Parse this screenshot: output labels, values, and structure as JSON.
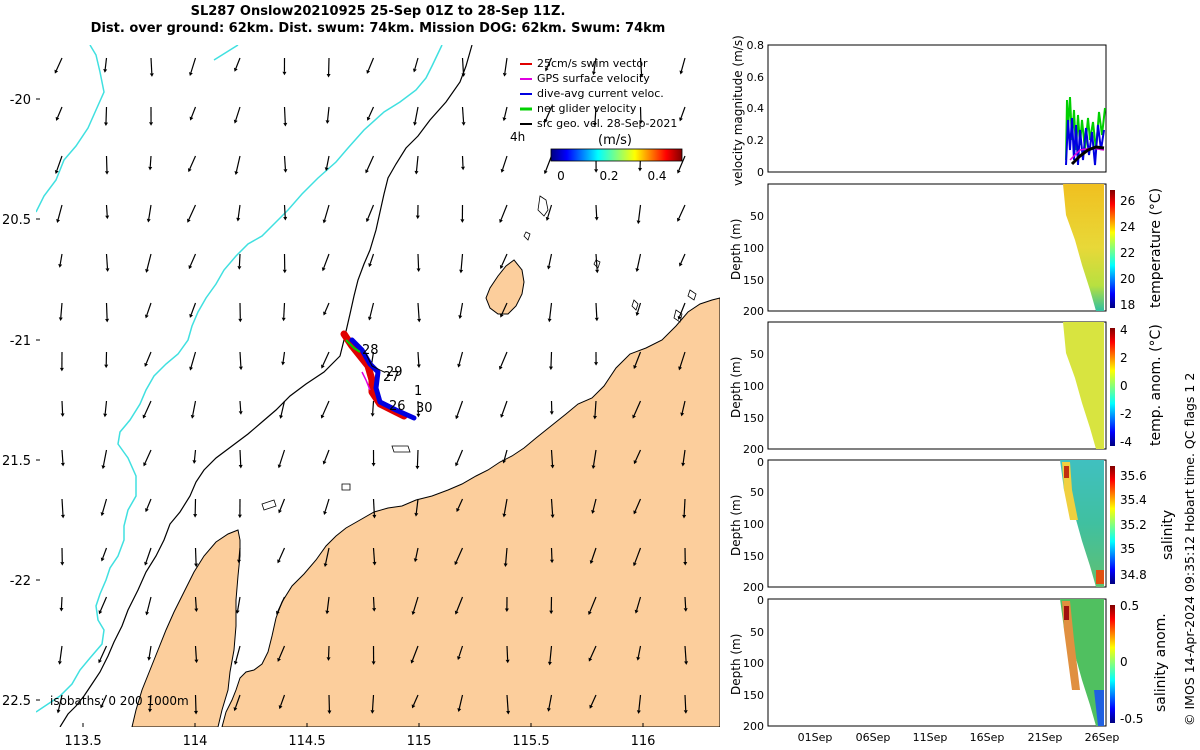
{
  "title": {
    "line1": "SL287 Onslow20210925 25-Sep 01Z to 28-Sep 11Z.",
    "line2": "Dist. over ground: 62km. Dist. swum: 74km. Mission DOG: 62km. Swum: 74km"
  },
  "map": {
    "lon_ticks": [
      "113.5",
      "114",
      "114.5",
      "115",
      "115.5",
      "116"
    ],
    "lat_ticks": [
      "-20",
      "20.5",
      "-21",
      "21.5",
      "-22",
      "22.5"
    ],
    "legend": [
      {
        "label": "25cm/s swim vector",
        "color": "#e00000"
      },
      {
        "label": "GPS surface velocity",
        "color": "#e000e0"
      },
      {
        "label": "dive-avg current veloc.",
        "color": "#0000e0"
      },
      {
        "label": "net glider velocity",
        "color": "#00d000"
      },
      {
        "label": "sfc geo. vel. 28-Sep-2021",
        "color": "#000000"
      }
    ],
    "time_marker": "4h",
    "colorbar_label": "(m/s)",
    "colorbar_ticks": [
      "0",
      "0.2",
      "0.4"
    ],
    "day_labels": [
      "28",
      "29",
      "27",
      "1",
      "26",
      "30"
    ],
    "isobaths_label": "isobaths: 0   200  1000m",
    "colors": {
      "land": "#fcce9c",
      "isobath_200": "#40e0e0",
      "coast": "#000000"
    }
  },
  "right_panels": {
    "date_ticks": [
      "01Sep",
      "06Sep",
      "11Sep",
      "16Sep",
      "21Sep",
      "26Sep"
    ],
    "velocity": {
      "ylabel": "velocity magnitude (m/s)",
      "yticks": [
        "0",
        "0.2",
        "0.4",
        "0.6",
        "0.8"
      ]
    },
    "depth_label": "Depth (m)",
    "depth_ticks": [
      "0",
      "50",
      "100",
      "150",
      "200"
    ],
    "temperature": {
      "label": "temperature (°C)",
      "cticks": [
        "26",
        "24",
        "22",
        "20",
        "18"
      ]
    },
    "temp_anom": {
      "label": "temp. anom. (°C)",
      "cticks": [
        "4",
        "2",
        "0",
        "-2",
        "-4"
      ]
    },
    "salinity": {
      "label": "salinity",
      "cticks": [
        "35.6",
        "35.4",
        "35.2",
        "35",
        "34.8"
      ]
    },
    "sal_anom": {
      "label": "salinity anom.",
      "cticks": [
        "0.5",
        "0",
        "-0.5"
      ]
    }
  },
  "footer": "© IMOS 14-Apr-2024 09:35:12 Hobart time. QC flags 1  2"
}
